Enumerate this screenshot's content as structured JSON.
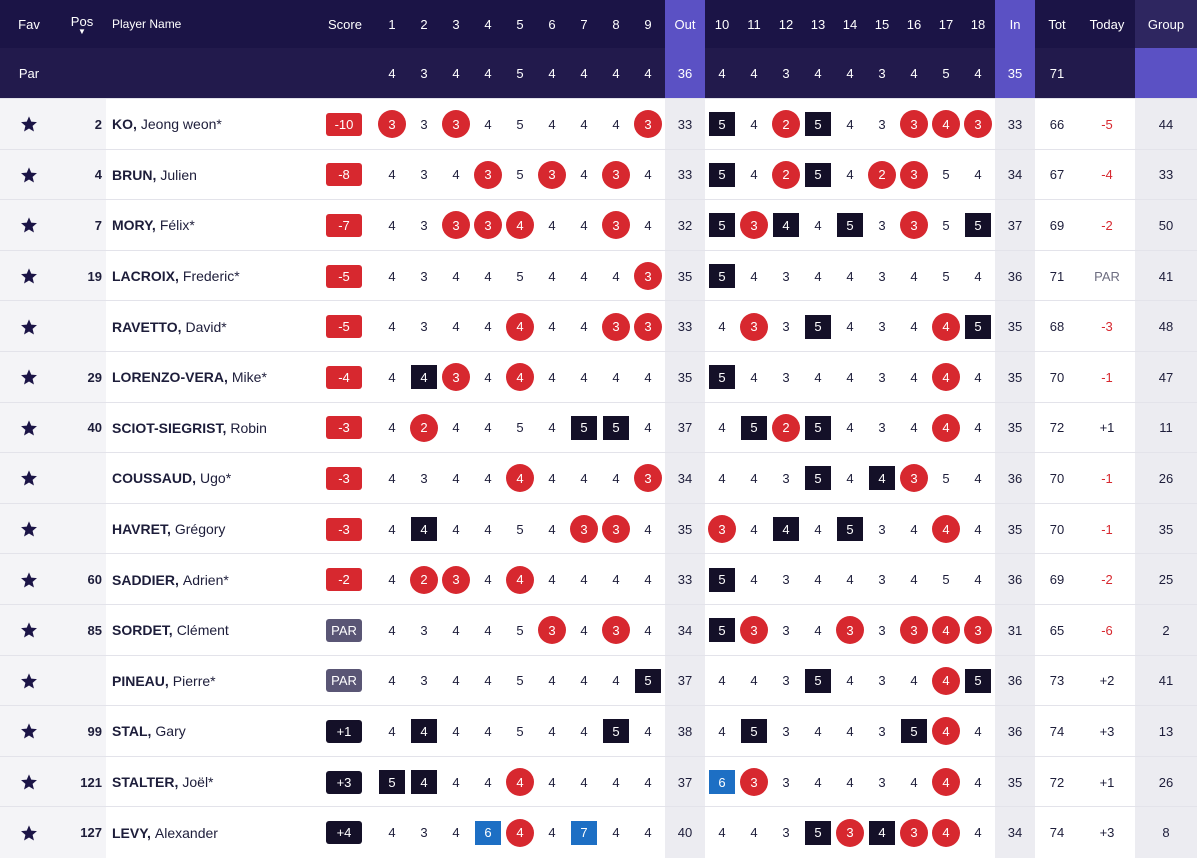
{
  "headers": {
    "fav": "Fav",
    "pos": "Pos",
    "name": "Player Name",
    "score": "Score",
    "out": "Out",
    "in": "In",
    "tot": "Tot",
    "today": "Today",
    "group": "Group",
    "holes": [
      "1",
      "2",
      "3",
      "4",
      "5",
      "6",
      "7",
      "8",
      "9",
      "10",
      "11",
      "12",
      "13",
      "14",
      "15",
      "16",
      "17",
      "18"
    ]
  },
  "par": {
    "label": "Par",
    "holes": [
      "4",
      "3",
      "4",
      "4",
      "5",
      "4",
      "4",
      "4",
      "4",
      "4",
      "4",
      "3",
      "4",
      "4",
      "3",
      "4",
      "5",
      "4"
    ],
    "out": "36",
    "in": "35",
    "tot": "71"
  },
  "colors": {
    "header_bg": "#1b1446",
    "highlight": "#5b51c4",
    "red": "#d7282f",
    "black": "#141028",
    "blue": "#1d6fc4",
    "par_badge": "#5a5675"
  },
  "icons": {
    "fav": "star-icon",
    "sort": "sort-desc-icon"
  },
  "players": [
    {
      "pos": "2",
      "last": "KO,",
      "first": "Jeong weon*",
      "score": "-10",
      "score_style": "red",
      "holes": [
        "3",
        "3",
        "3",
        "4",
        "5",
        "4",
        "4",
        "4",
        "3",
        "5",
        "4",
        "2",
        "5",
        "4",
        "3",
        "3",
        "4",
        "3"
      ],
      "out": "33",
      "in": "33",
      "tot": "66",
      "today": "-5",
      "today_style": "red",
      "group": "44"
    },
    {
      "pos": "4",
      "last": "BRUN,",
      "first": "Julien",
      "score": "-8",
      "score_style": "red",
      "holes": [
        "4",
        "3",
        "4",
        "3",
        "5",
        "3",
        "4",
        "3",
        "4",
        "5",
        "4",
        "2",
        "5",
        "4",
        "2",
        "3",
        "5",
        "4"
      ],
      "out": "33",
      "in": "34",
      "tot": "67",
      "today": "-4",
      "today_style": "red",
      "group": "33"
    },
    {
      "pos": "7",
      "last": "MORY,",
      "first": "Félix*",
      "score": "-7",
      "score_style": "red",
      "holes": [
        "4",
        "3",
        "3",
        "3",
        "4",
        "4",
        "4",
        "3",
        "4",
        "5",
        "3",
        "4",
        "4",
        "5",
        "3",
        "3",
        "5",
        "5"
      ],
      "out": "32",
      "in": "37",
      "tot": "69",
      "today": "-2",
      "today_style": "red",
      "group": "50"
    },
    {
      "pos": "19",
      "last": "LACROIX,",
      "first": "Frederic*",
      "score": "-5",
      "score_style": "red",
      "holes": [
        "4",
        "3",
        "4",
        "4",
        "5",
        "4",
        "4",
        "4",
        "3",
        "5",
        "4",
        "3",
        "4",
        "4",
        "3",
        "4",
        "5",
        "4"
      ],
      "out": "35",
      "in": "36",
      "tot": "71",
      "today": "PAR",
      "today_style": "gray",
      "group": "41"
    },
    {
      "pos": "",
      "last": "RAVETTO,",
      "first": "David*",
      "score": "-5",
      "score_style": "red",
      "holes": [
        "4",
        "3",
        "4",
        "4",
        "4",
        "4",
        "4",
        "3",
        "3",
        "4",
        "3",
        "3",
        "5",
        "4",
        "3",
        "4",
        "4",
        "5"
      ],
      "out": "33",
      "in": "35",
      "tot": "68",
      "today": "-3",
      "today_style": "red",
      "group": "48"
    },
    {
      "pos": "29",
      "last": "LORENZO-VERA,",
      "first": "Mike*",
      "score": "-4",
      "score_style": "red",
      "holes": [
        "4",
        "4",
        "3",
        "4",
        "4",
        "4",
        "4",
        "4",
        "4",
        "5",
        "4",
        "3",
        "4",
        "4",
        "3",
        "4",
        "4",
        "4"
      ],
      "out": "35",
      "in": "35",
      "tot": "70",
      "today": "-1",
      "today_style": "red",
      "group": "47"
    },
    {
      "pos": "40",
      "last": "SCIOT-SIEGRIST,",
      "first": "Robin",
      "score": "-3",
      "score_style": "red",
      "holes": [
        "4",
        "2",
        "4",
        "4",
        "5",
        "4",
        "5",
        "5",
        "4",
        "4",
        "5",
        "2",
        "5",
        "4",
        "3",
        "4",
        "4",
        "4"
      ],
      "out": "37",
      "in": "35",
      "tot": "72",
      "today": "+1",
      "today_style": "dark",
      "group": "11"
    },
    {
      "pos": "",
      "last": "COUSSAUD,",
      "first": "Ugo*",
      "score": "-3",
      "score_style": "red",
      "holes": [
        "4",
        "3",
        "4",
        "4",
        "4",
        "4",
        "4",
        "4",
        "3",
        "4",
        "4",
        "3",
        "5",
        "4",
        "4",
        "3",
        "5",
        "4"
      ],
      "out": "34",
      "in": "36",
      "tot": "70",
      "today": "-1",
      "today_style": "red",
      "group": "26"
    },
    {
      "pos": "",
      "last": "HAVRET,",
      "first": "Grégory",
      "score": "-3",
      "score_style": "red",
      "holes": [
        "4",
        "4",
        "4",
        "4",
        "5",
        "4",
        "3",
        "3",
        "4",
        "3",
        "4",
        "4",
        "4",
        "5",
        "3",
        "4",
        "4",
        "4"
      ],
      "out": "35",
      "in": "35",
      "tot": "70",
      "today": "-1",
      "today_style": "red",
      "group": "35"
    },
    {
      "pos": "60",
      "last": "SADDIER,",
      "first": "Adrien*",
      "score": "-2",
      "score_style": "red",
      "holes": [
        "4",
        "2",
        "3",
        "4",
        "4",
        "4",
        "4",
        "4",
        "4",
        "5",
        "4",
        "3",
        "4",
        "4",
        "3",
        "4",
        "5",
        "4"
      ],
      "out": "33",
      "in": "36",
      "tot": "69",
      "today": "-2",
      "today_style": "red",
      "group": "25"
    },
    {
      "pos": "85",
      "last": "SORDET,",
      "first": "Clément",
      "score": "PAR",
      "score_style": "par",
      "holes": [
        "4",
        "3",
        "4",
        "4",
        "5",
        "3",
        "4",
        "3",
        "4",
        "5",
        "3",
        "3",
        "4",
        "3",
        "3",
        "3",
        "4",
        "3"
      ],
      "out": "34",
      "in": "31",
      "tot": "65",
      "today": "-6",
      "today_style": "red",
      "group": "2"
    },
    {
      "pos": "",
      "last": "PINEAU,",
      "first": "Pierre*",
      "score": "PAR",
      "score_style": "par",
      "holes": [
        "4",
        "3",
        "4",
        "4",
        "5",
        "4",
        "4",
        "4",
        "5",
        "4",
        "4",
        "3",
        "5",
        "4",
        "3",
        "4",
        "4",
        "5"
      ],
      "out": "37",
      "in": "36",
      "tot": "73",
      "today": "+2",
      "today_style": "dark",
      "group": "41"
    },
    {
      "pos": "99",
      "last": "STAL,",
      "first": "Gary",
      "score": "+1",
      "score_style": "black",
      "holes": [
        "4",
        "4",
        "4",
        "4",
        "5",
        "4",
        "4",
        "5",
        "4",
        "4",
        "5",
        "3",
        "4",
        "4",
        "3",
        "5",
        "4",
        "4"
      ],
      "out": "38",
      "in": "36",
      "tot": "74",
      "today": "+3",
      "today_style": "dark",
      "group": "13"
    },
    {
      "pos": "121",
      "last": "STALTER,",
      "first": "Joël*",
      "score": "+3",
      "score_style": "black",
      "holes": [
        "5",
        "4",
        "4",
        "4",
        "4",
        "4",
        "4",
        "4",
        "4",
        "6",
        "3",
        "3",
        "4",
        "4",
        "3",
        "4",
        "4",
        "4"
      ],
      "out": "37",
      "in": "35",
      "tot": "72",
      "today": "+1",
      "today_style": "dark",
      "group": "26"
    },
    {
      "pos": "127",
      "last": "LEVY,",
      "first": "Alexander",
      "score": "+4",
      "score_style": "black",
      "holes": [
        "4",
        "3",
        "4",
        "6",
        "4",
        "4",
        "7",
        "4",
        "4",
        "4",
        "4",
        "3",
        "5",
        "3",
        "4",
        "3",
        "4",
        "4"
      ],
      "out": "40",
      "in": "34",
      "tot": "74",
      "today": "+3",
      "today_style": "dark",
      "group": "8"
    }
  ]
}
